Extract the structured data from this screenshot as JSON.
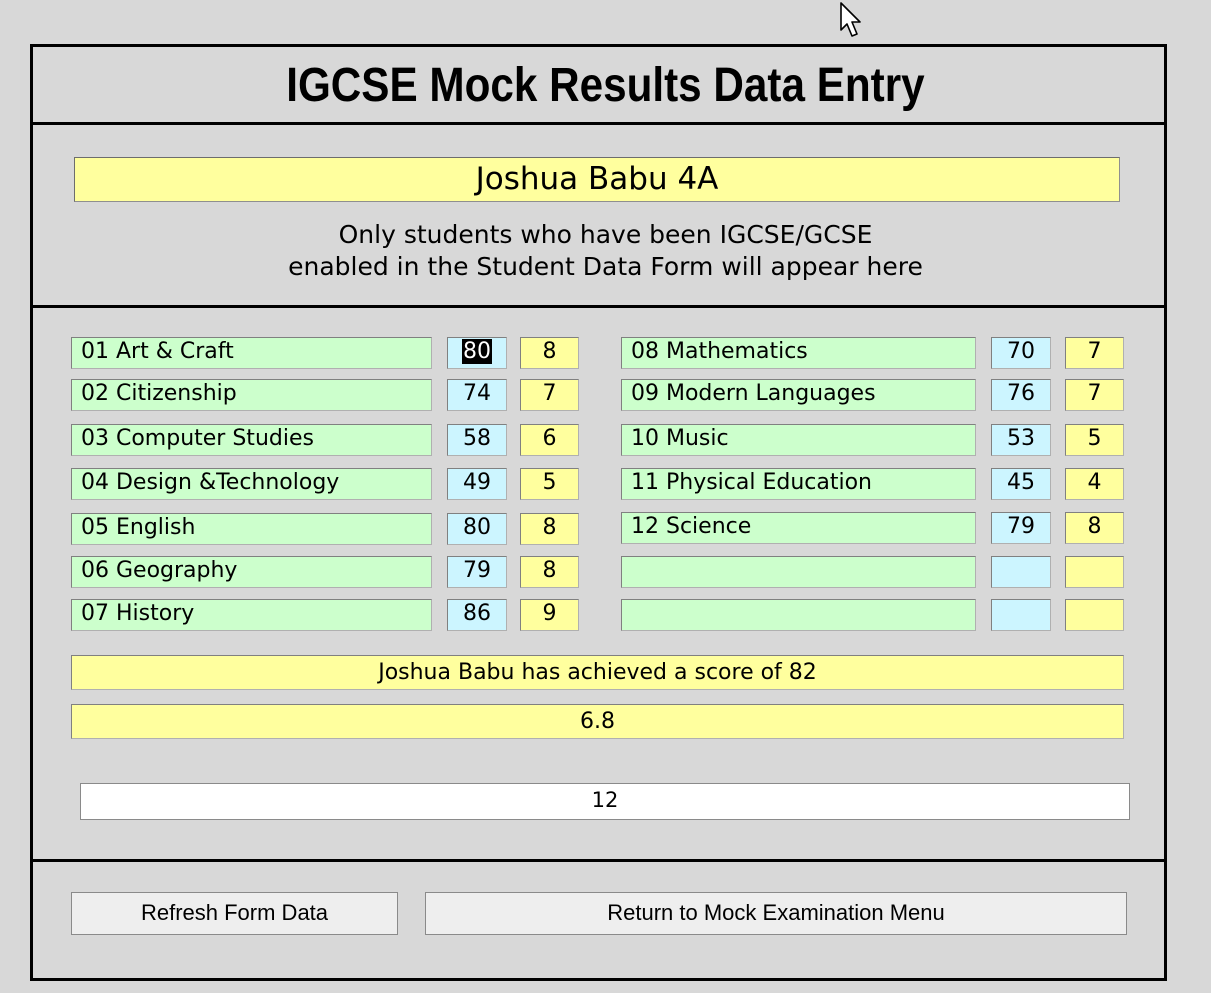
{
  "form": {
    "title": "IGCSE Mock Results Data Entry",
    "student": "Joshua Babu 4A",
    "note_line1": "Only students who have been IGCSE/GCSE",
    "note_line2": "enabled in the Student Data Form will appear here"
  },
  "subjects_left": [
    {
      "name": "01 Art & Craft",
      "mark": "80",
      "grade": "8"
    },
    {
      "name": "02 Citizenship",
      "mark": "74",
      "grade": "7"
    },
    {
      "name": "03 Computer Studies",
      "mark": "58",
      "grade": "6"
    },
    {
      "name": "04 Design &Technology",
      "mark": "49",
      "grade": "5"
    },
    {
      "name": "05 English",
      "mark": "80",
      "grade": "8"
    },
    {
      "name": "06 Geography",
      "mark": "79",
      "grade": "8"
    },
    {
      "name": "07 History",
      "mark": "86",
      "grade": "9"
    }
  ],
  "subjects_right": [
    {
      "name": "08 Mathematics",
      "mark": "70",
      "grade": "7"
    },
    {
      "name": "09 Modern Languages",
      "mark": "76",
      "grade": "7"
    },
    {
      "name": "10 Music",
      "mark": "53",
      "grade": "5"
    },
    {
      "name": "11 Physical Education",
      "mark": "45",
      "grade": "4"
    },
    {
      "name": "12 Science",
      "mark": "79",
      "grade": "8"
    },
    {
      "name": "",
      "mark": "",
      "grade": ""
    },
    {
      "name": "",
      "mark": "",
      "grade": ""
    }
  ],
  "summary": {
    "score_text": "Joshua Babu has achieved a score of 82",
    "average": "6.8",
    "subject_count": "12"
  },
  "buttons": {
    "refresh": "Refresh Form Data",
    "return": "Return to Mock Examination Menu"
  },
  "colors": {
    "subject": "#ccffcc",
    "mark": "#ccf5ff",
    "grade": "#ffff9e",
    "background": "#d8d8d8"
  },
  "icons": {
    "cursor": "mouse-pointer-icon"
  }
}
